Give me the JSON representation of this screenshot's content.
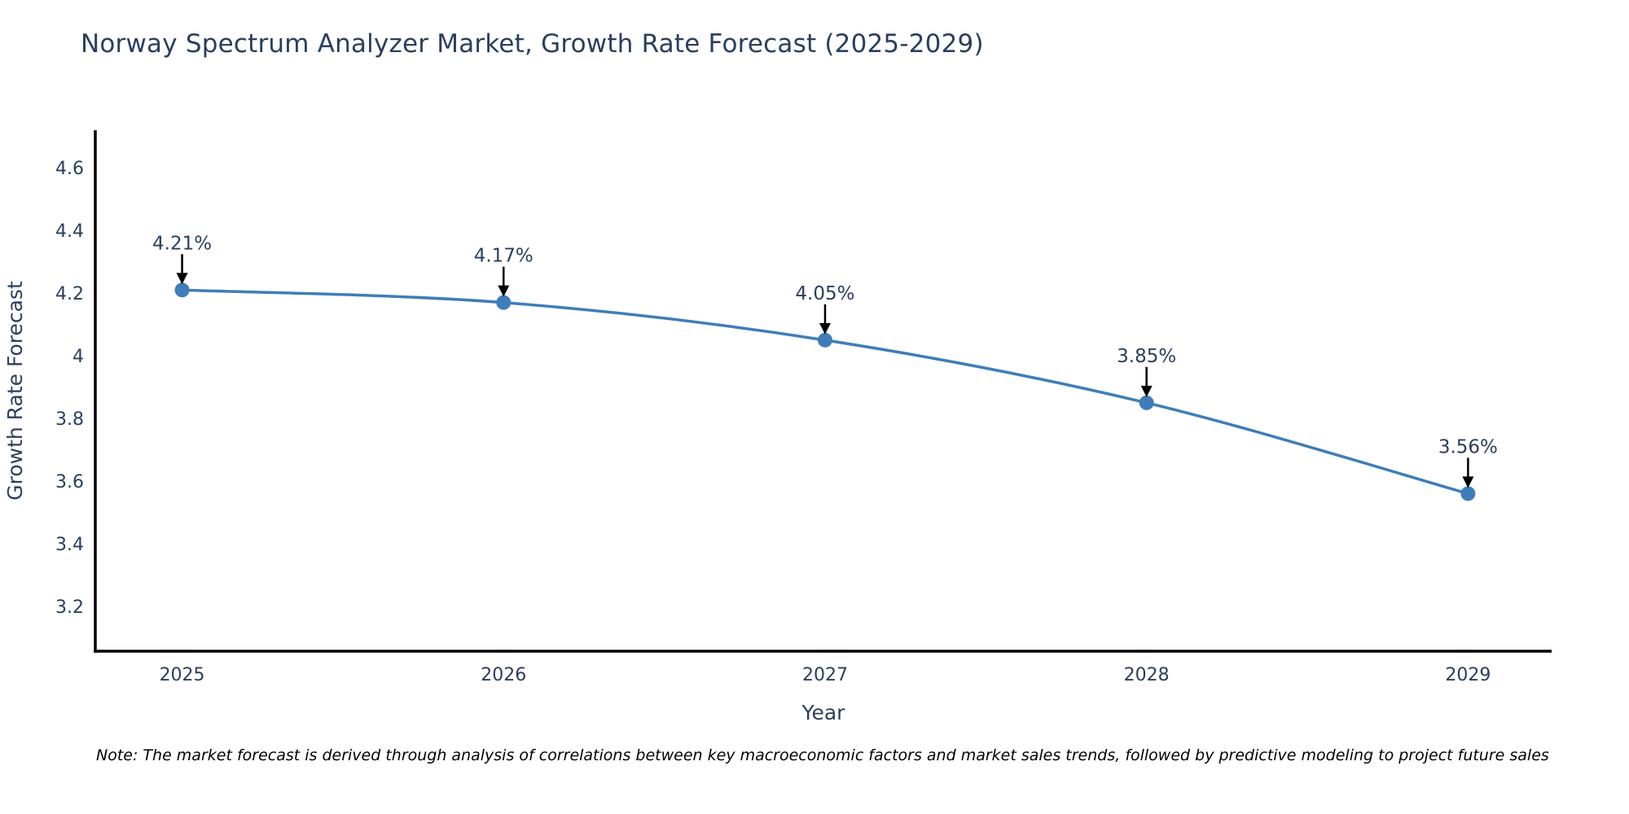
{
  "title": "Norway Spectrum Analyzer Market, Growth Rate Forecast (2025-2029)",
  "note": "Note: The market forecast is derived through analysis of correlations between key macroeconomic factors and market sales trends, followed by predictive modeling to project future sales",
  "colors": {
    "text": "#2a3f5f",
    "line": "#3f7db8",
    "marker": "#3f7db8",
    "axis": "#000000",
    "annotation_arrow": "#000000",
    "note_text": "#000000",
    "background": "#ffffff"
  },
  "chart_data": {
    "type": "line",
    "title": "Norway Spectrum Analyzer Market, Growth Rate Forecast (2025-2029)",
    "xlabel": "Year",
    "ylabel": "Growth Rate Forecast",
    "x": [
      2025,
      2026,
      2027,
      2028,
      2029
    ],
    "xtick_labels": [
      "2025",
      "2026",
      "2027",
      "2028",
      "2029"
    ],
    "series": [
      {
        "name": "Growth Rate Forecast",
        "values": [
          4.21,
          4.17,
          4.05,
          3.85,
          3.56
        ]
      }
    ],
    "point_labels": [
      "4.21%",
      "4.17%",
      "4.05%",
      "3.85%",
      "3.56%"
    ],
    "yticks": [
      3.2,
      3.4,
      3.6,
      3.8,
      4,
      4.2,
      4.4,
      4.6
    ],
    "ytick_labels": [
      "3.2",
      "3.4",
      "3.6",
      "3.8",
      "4",
      "4.2",
      "4.4",
      "4.6"
    ],
    "xlim": [
      2024.73,
      2029.26
    ],
    "ylim": [
      3.057,
      4.72
    ],
    "grid": false,
    "legend": false,
    "marker_style": "circle",
    "annotation_style": "label-above-with-down-arrow"
  }
}
